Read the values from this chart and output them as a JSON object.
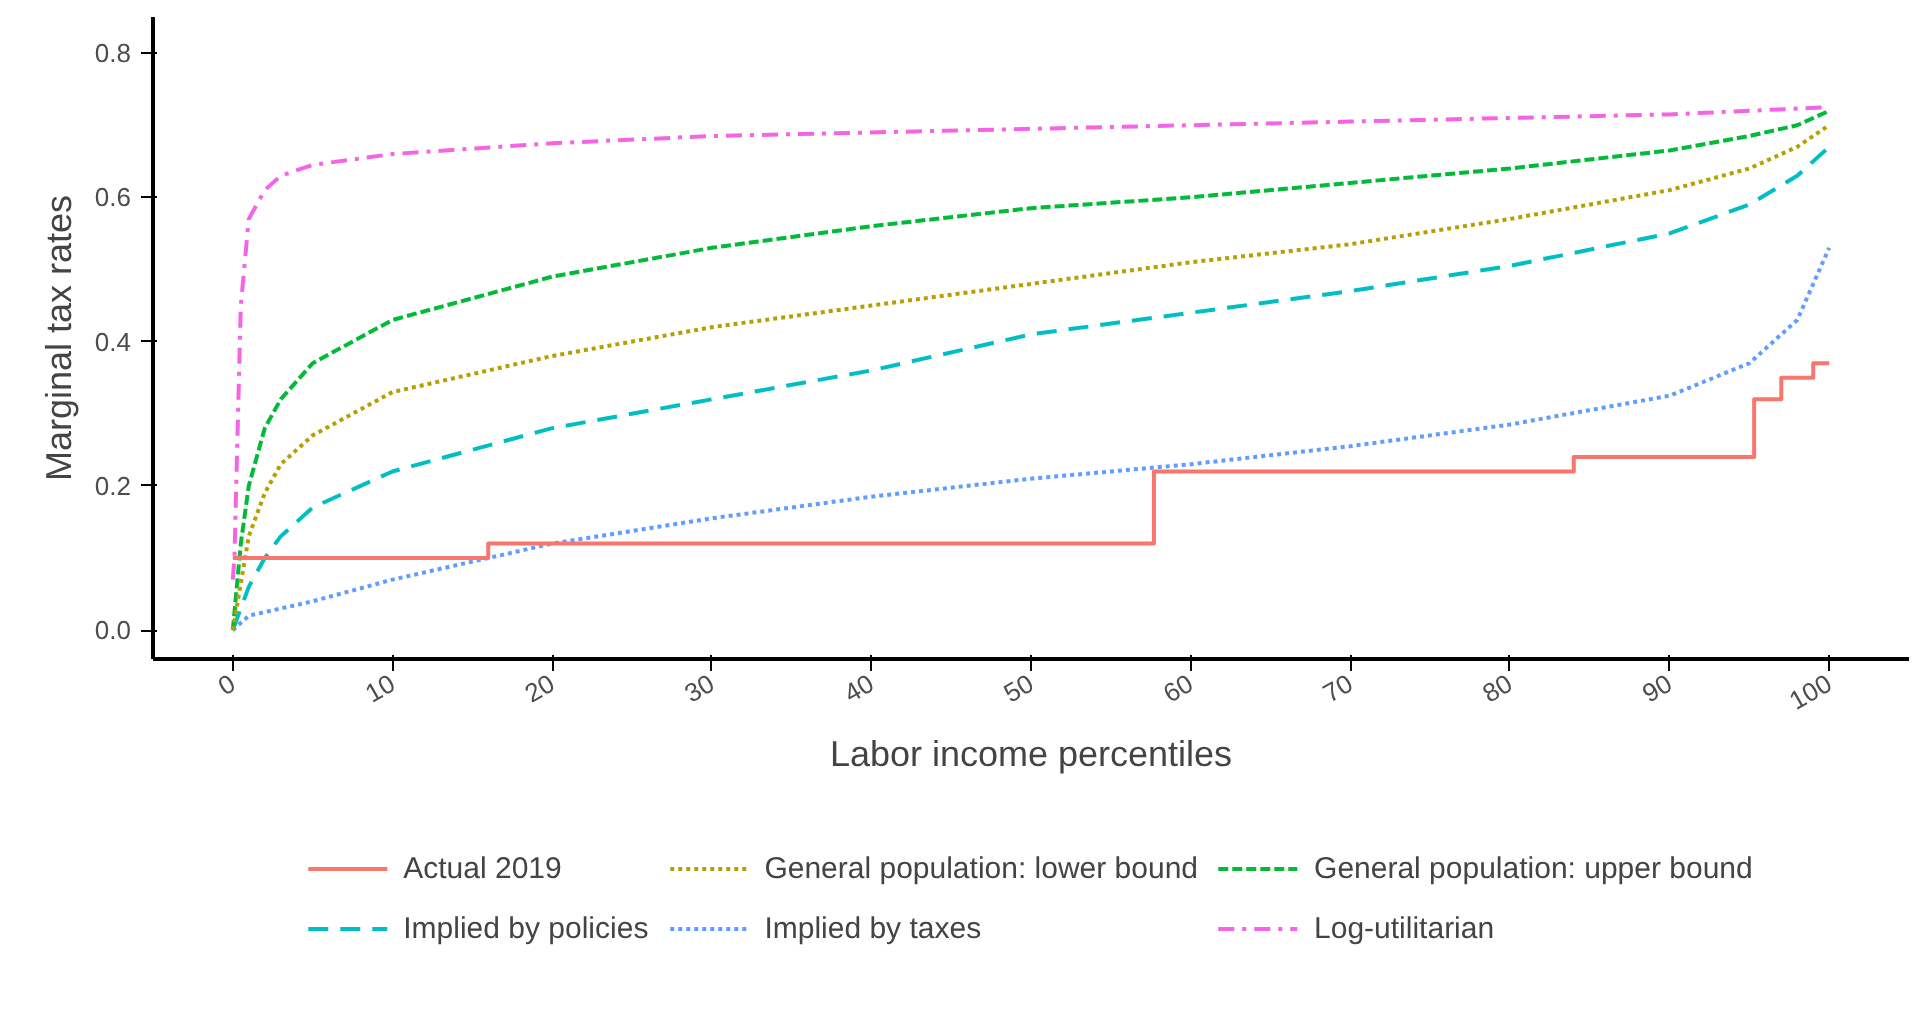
{
  "chart_data": {
    "type": "line",
    "xlabel": "Labor income percentiles",
    "ylabel": "Marginal tax rates",
    "xlim": [
      -5,
      105
    ],
    "ylim": [
      -0.04,
      0.85
    ],
    "xticks": [
      0,
      10,
      20,
      30,
      40,
      50,
      60,
      70,
      80,
      90,
      100
    ],
    "yticks": [
      {
        "value": 0,
        "label": "0.0"
      },
      0.2,
      0.4,
      0.6,
      0.8
    ],
    "grid": false,
    "legend": "bottom",
    "marker": "none",
    "series": [
      {
        "name": "Actual 2019",
        "color": "#f8766d",
        "type": "step",
        "line_style": "solid",
        "x": [
          0,
          16,
          57.7,
          84,
          95.3,
          97,
          99,
          100
        ],
        "values": [
          0.1,
          0.12,
          0.22,
          0.24,
          0.32,
          0.35,
          0.37,
          0.37
        ]
      },
      {
        "name": "General population: lower bound",
        "color": "#b79f00",
        "line_style": "dotted",
        "x": [
          0,
          1,
          2,
          3,
          5,
          10,
          20,
          30,
          40,
          50,
          60,
          70,
          80,
          90,
          95,
          98,
          100
        ],
        "values": [
          0,
          0.13,
          0.19,
          0.23,
          0.27,
          0.33,
          0.38,
          0.42,
          0.45,
          0.48,
          0.51,
          0.535,
          0.57,
          0.61,
          0.64,
          0.67,
          0.7
        ]
      },
      {
        "name": "General population: upper bound",
        "color": "#00ba38",
        "line_style": "dashed",
        "x": [
          0,
          0.5,
          1,
          2,
          3,
          5,
          10,
          15,
          20,
          30,
          40,
          50,
          60,
          70,
          80,
          90,
          95,
          98,
          100
        ],
        "values": [
          0,
          0.12,
          0.2,
          0.28,
          0.32,
          0.37,
          0.43,
          0.46,
          0.49,
          0.53,
          0.56,
          0.585,
          0.6,
          0.62,
          0.64,
          0.665,
          0.685,
          0.7,
          0.72
        ]
      },
      {
        "name": "Implied by policies",
        "color": "#00bfc4",
        "line_style": "longdash",
        "x": [
          0,
          0.5,
          1,
          2,
          3,
          5,
          10,
          20,
          30,
          40,
          50,
          60,
          70,
          80,
          90,
          95,
          98,
          100
        ],
        "values": [
          0,
          0.03,
          0.06,
          0.1,
          0.13,
          0.17,
          0.22,
          0.28,
          0.32,
          0.36,
          0.41,
          0.44,
          0.47,
          0.505,
          0.55,
          0.59,
          0.63,
          0.67
        ]
      },
      {
        "name": "Implied by taxes",
        "color": "#619cff",
        "line_style": "dotted",
        "x": [
          0,
          1,
          5,
          10,
          20,
          30,
          40,
          50,
          60,
          70,
          80,
          90,
          95,
          98,
          100
        ],
        "values": [
          0,
          0.02,
          0.04,
          0.07,
          0.12,
          0.155,
          0.185,
          0.21,
          0.23,
          0.255,
          0.285,
          0.325,
          0.37,
          0.43,
          0.53
        ]
      },
      {
        "name": "Log-utilitarian",
        "color": "#f564e3",
        "line_style": "dashdot",
        "x": [
          0,
          0.1,
          0.5,
          1,
          2,
          3,
          5,
          10,
          20,
          30,
          50,
          70,
          90,
          100
        ],
        "values": [
          0.07,
          0.1,
          0.45,
          0.57,
          0.61,
          0.63,
          0.645,
          0.66,
          0.675,
          0.685,
          0.695,
          0.705,
          0.715,
          0.725
        ]
      }
    ]
  }
}
